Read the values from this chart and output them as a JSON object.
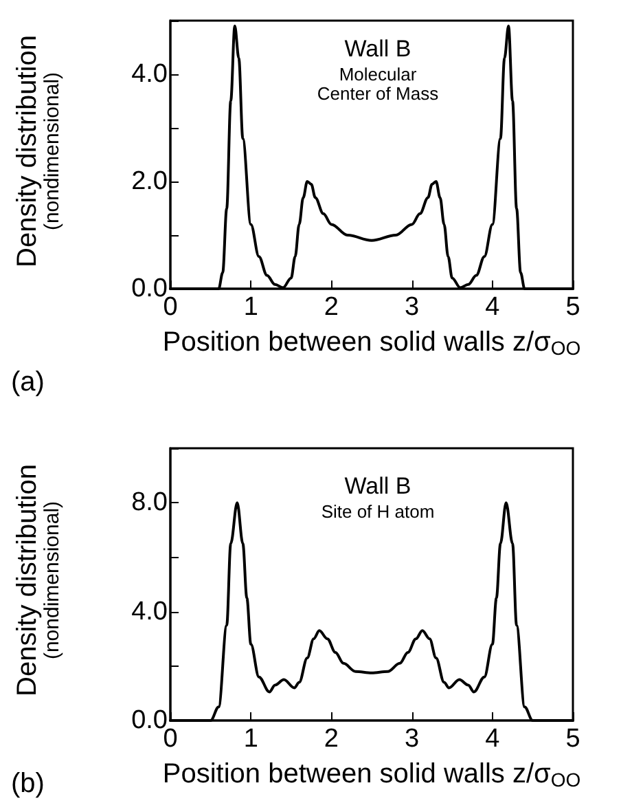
{
  "chart_data": [
    {
      "type": "line",
      "title": "Wall B",
      "subtitle": "Molecular\nCenter of Mass",
      "xlabel": "Position between solid walls z/σ$_{OO}$",
      "ylabel": "Density distribution\n(nondimensional)",
      "annotations": [
        "(a)"
      ],
      "series": [
        {
          "color": "#000000",
          "x": [
            0,
            0.6,
            0.65,
            0.7,
            0.75,
            0.8,
            0.85,
            0.9,
            1.0,
            1.1,
            1.2,
            1.3,
            1.4,
            1.5,
            1.55,
            1.6,
            1.65,
            1.7,
            1.75,
            1.8,
            1.9,
            2.0,
            2.2,
            2.5,
            2.8,
            3.0,
            3.1,
            3.2,
            3.25,
            3.3,
            3.35,
            3.4,
            3.45,
            3.5,
            3.6,
            3.7,
            3.8,
            3.9,
            4.0,
            4.1,
            4.15,
            4.2,
            4.25,
            4.3,
            4.35,
            4.4,
            5
          ],
          "values": [
            0,
            0,
            0.3,
            1.5,
            3.5,
            4.9,
            4.3,
            2.8,
            1.2,
            0.6,
            0.25,
            0.08,
            0.02,
            0.2,
            0.6,
            1.2,
            1.7,
            2.0,
            1.95,
            1.7,
            1.4,
            1.2,
            1.0,
            0.9,
            1.0,
            1.2,
            1.4,
            1.7,
            1.95,
            2.0,
            1.7,
            1.2,
            0.6,
            0.2,
            0.02,
            0.08,
            0.25,
            0.6,
            1.2,
            2.8,
            4.3,
            4.9,
            3.5,
            1.5,
            0.3,
            0,
            0
          ]
        }
      ],
      "xlim": [
        0,
        5
      ],
      "xticks": [
        0,
        1,
        2,
        3,
        4,
        5
      ],
      "ylim": [
        0,
        5
      ],
      "yticks": [
        {
          "value": 0,
          "label": "0.0"
        },
        {
          "value": 1,
          "label": null
        },
        {
          "value": 2,
          "label": "2.0"
        },
        {
          "value": 3,
          "label": null
        },
        {
          "value": 4,
          "label": "4.0"
        },
        {
          "value": 5,
          "label": null
        }
      ],
      "grid": false,
      "marker": "none",
      "line_style": "solid"
    },
    {
      "type": "line",
      "title": "Wall B",
      "subtitle": "Site of H atom",
      "xlabel": "Position between solid walls z/σ$_{OO}$",
      "ylabel": "Density distribution\n(nondimensional)",
      "annotations": [
        "(b)"
      ],
      "series": [
        {
          "color": "#000000",
          "x": [
            0,
            0.5,
            0.6,
            0.7,
            0.75,
            0.83,
            0.9,
            0.95,
            1.0,
            1.1,
            1.23,
            1.3,
            1.41,
            1.54,
            1.6,
            1.7,
            1.78,
            1.85,
            1.95,
            2.05,
            2.15,
            2.3,
            2.5,
            2.7,
            2.85,
            2.95,
            3.05,
            3.13,
            3.22,
            3.3,
            3.4,
            3.46,
            3.59,
            3.7,
            3.77,
            3.9,
            4.0,
            4.05,
            4.1,
            4.17,
            4.25,
            4.3,
            4.4,
            4.5,
            5
          ],
          "values": [
            0,
            0,
            0.5,
            3.5,
            6.5,
            8.0,
            6.5,
            4.5,
            2.8,
            1.6,
            1.05,
            1.3,
            1.5,
            1.2,
            1.4,
            2.3,
            3.0,
            3.3,
            3.0,
            2.5,
            2.1,
            1.8,
            1.75,
            1.8,
            2.1,
            2.5,
            3.0,
            3.3,
            3.0,
            2.3,
            1.4,
            1.2,
            1.5,
            1.3,
            1.05,
            1.6,
            2.8,
            4.5,
            6.5,
            8.0,
            6.5,
            3.5,
            0.5,
            0,
            0
          ]
        }
      ],
      "xlim": [
        0,
        5
      ],
      "xticks": [
        0,
        1,
        2,
        3,
        4,
        5
      ],
      "ylim": [
        0,
        10
      ],
      "yticks": [
        {
          "value": 0,
          "label": "0.0"
        },
        {
          "value": 2,
          "label": null
        },
        {
          "value": 4,
          "label": "4.0"
        },
        {
          "value": 6,
          "label": null
        },
        {
          "value": 8,
          "label": "8.0"
        },
        {
          "value": 10,
          "label": null
        }
      ],
      "grid": false,
      "marker": "none",
      "line_style": "solid"
    }
  ]
}
